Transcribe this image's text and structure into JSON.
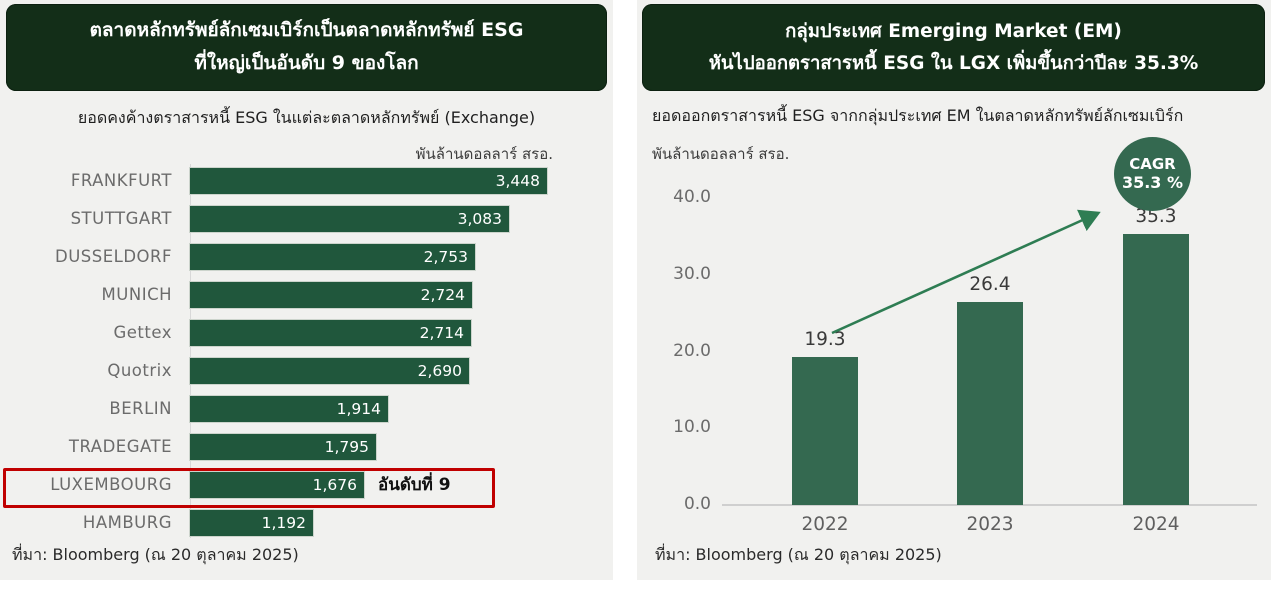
{
  "colors": {
    "title_bg": "#132e18",
    "left_bar": "#20573c",
    "right_bar": "#346950",
    "badge_bg": "#346950",
    "arrow": "#2e7d53",
    "highlight_red": "#c00000",
    "panel_bg": "#f1f1ef",
    "axis_label": "#6b6b6b",
    "text_dark": "#262626"
  },
  "left_panel": {
    "title_line1": "ตลาดหลักทรัพย์ลักเซมเบิร์กเป็นตลาดหลักทรัพย์ ESG",
    "title_line2": "ที่ใหญ่เป็นอันดับ 9 ของโลก",
    "subtitle": "ยอดคงค้างตราสารหนี้ ESG ในแต่ละตลาดหลักทรัพย์ (Exchange)",
    "unit_label": "พันล้านดอลลาร์ สรอ.",
    "source": "ที่มา: Bloomberg (ณ 20 ตุลาคม 2025)"
  },
  "right_panel": {
    "title_line1": "กลุ่มประเทศ Emerging Market (EM)",
    "title_line2": "หันไปออกตราสารหนี้ ESG ใน LGX เพิ่มขึ้นกว่าปีละ 35.3%",
    "subtitle": "ยอดออกตราสารหนี้ ESG จากกลุ่มประเทศ EM ในตลาดหลักทรัพย์ลักเซมเบิร์ก",
    "unit_label": "พันล้านดอลลาร์ สรอ.",
    "source": "ที่มา: Bloomberg (ณ 20 ตุลาคม 2025)"
  },
  "chart_data": [
    {
      "type": "bar",
      "orientation": "horizontal",
      "title": "ยอดคงค้างตราสารหนี้ ESG ในแต่ละตลาดหลักทรัพย์ (Exchange)",
      "unit": "พันล้านดอลลาร์ สรอ.",
      "categories": [
        "FRANKFURT",
        "STUTTGART",
        "DUSSELDORF",
        "MUNICH",
        "Gettex",
        "Quotrix",
        "BERLIN",
        "TRADEGATE",
        "LUXEMBOURG",
        "HAMBURG"
      ],
      "values": [
        3448,
        3083,
        2753,
        2724,
        2714,
        2690,
        1914,
        1795,
        1676,
        1192
      ],
      "value_labels": [
        "3,448",
        "3,083",
        "2,753",
        "2,724",
        "2,714",
        "2,690",
        "1,914",
        "1,795",
        "1,676",
        "1,192"
      ],
      "xlim": [
        0,
        3448
      ],
      "grid": false,
      "highlight": {
        "category": "LUXEMBOURG",
        "annotation": "อันดับที่ 9",
        "rank": 9
      }
    },
    {
      "type": "bar",
      "orientation": "vertical",
      "title": "ยอดออกตราสารหนี้ ESG จากกลุ่มประเทศ EM ในตลาดหลักทรัพย์ลักเซมเบิร์ก",
      "unit": "พันล้านดอลลาร์ สรอ.",
      "categories": [
        "2022",
        "2023",
        "2024"
      ],
      "values": [
        19.3,
        26.4,
        35.3
      ],
      "value_labels": [
        "19.3",
        "26.4",
        "35.3"
      ],
      "ylim": [
        0,
        40
      ],
      "ytick_values": [
        40,
        30,
        20,
        10,
        0
      ],
      "ytick_labels": [
        "40.0",
        "30.0",
        "20.0",
        "10.0",
        "0.0"
      ],
      "grid": false,
      "badge": {
        "line1": "CAGR",
        "line2": "35.3 %"
      }
    }
  ]
}
